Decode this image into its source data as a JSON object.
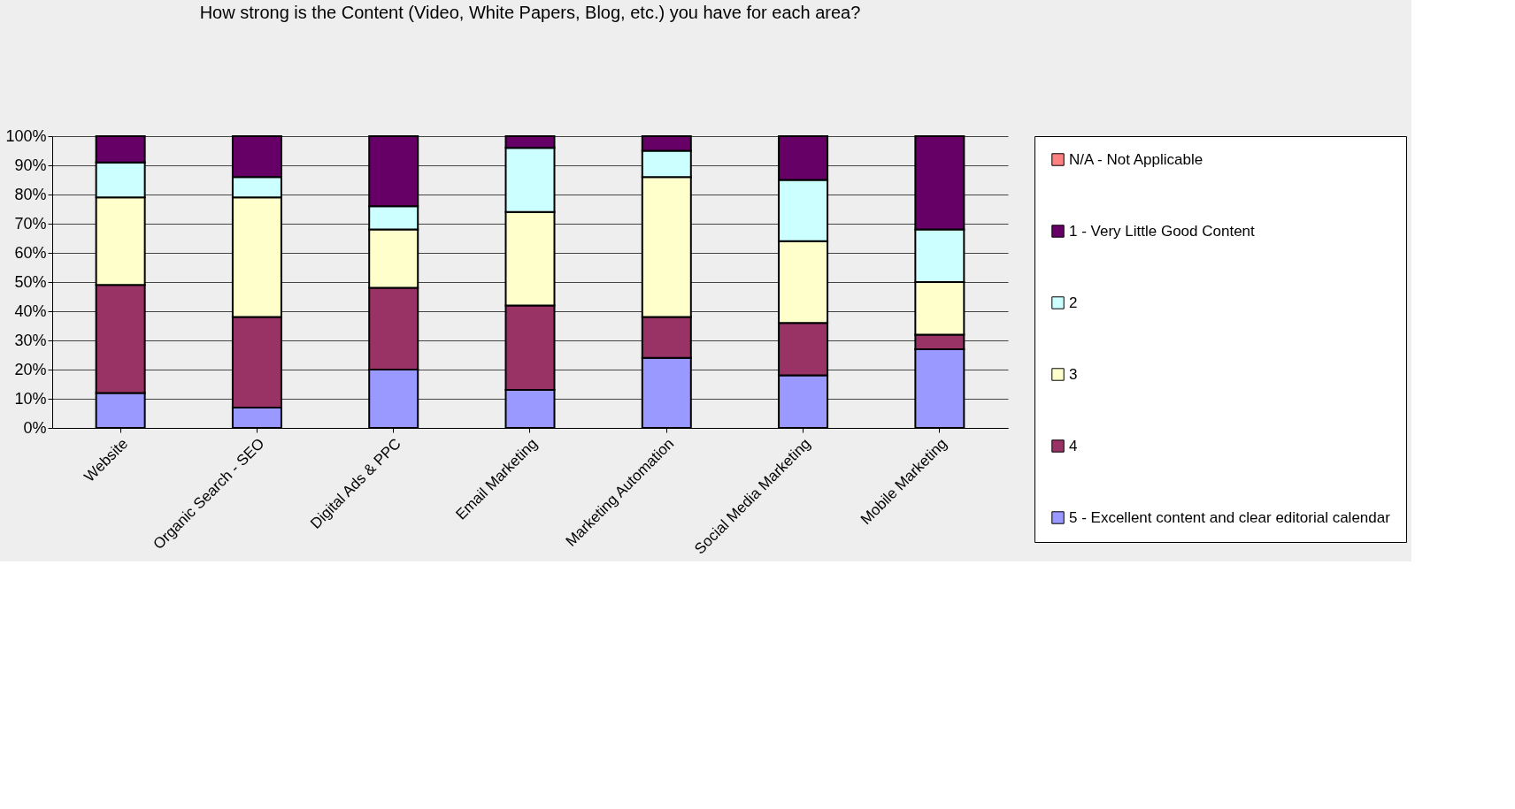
{
  "chart_data": {
    "type": "bar",
    "stacked": true,
    "title": "How strong is the Content (Video, White Papers, Blog, etc.) you have for each area?",
    "categories": [
      "Website",
      "Organic Search - SEO",
      "Digital Ads & PPC",
      "Email Marketing",
      "Marketing Automation",
      "Social Media Marketing",
      "Mobile Marketing"
    ],
    "series": [
      {
        "name": "5 - Excellent content and clear editorial calendar",
        "color": "#9999ff",
        "values": [
          12,
          7,
          20,
          13,
          24,
          18,
          27
        ]
      },
      {
        "name": "4",
        "color": "#993366",
        "values": [
          37,
          31,
          28,
          29,
          14,
          18,
          5
        ]
      },
      {
        "name": "3",
        "color": "#ffffcc",
        "values": [
          30,
          41,
          20,
          32,
          48,
          28,
          18
        ]
      },
      {
        "name": "2",
        "color": "#ccffff",
        "values": [
          12,
          7,
          8,
          22,
          9,
          21,
          18
        ]
      },
      {
        "name": "1 - Very Little Good Content",
        "color": "#660066",
        "values": [
          9,
          14,
          24,
          4,
          5,
          15,
          32
        ]
      },
      {
        "name": "N/A - Not Applicable",
        "color": "#ff8080",
        "values": [
          0,
          0,
          0,
          0,
          0,
          0,
          0
        ]
      }
    ],
    "ylim": [
      0,
      100
    ],
    "yticks": [
      {
        "value": 0,
        "label": "0%"
      },
      {
        "value": 10,
        "label": "10%"
      },
      {
        "value": 20,
        "label": "20%"
      },
      {
        "value": 30,
        "label": "30%"
      },
      {
        "value": 40,
        "label": "40%"
      },
      {
        "value": 50,
        "label": "50%"
      },
      {
        "value": 60,
        "label": "60%"
      },
      {
        "value": 70,
        "label": "70%"
      },
      {
        "value": 80,
        "label": "80%"
      },
      {
        "value": 90,
        "label": "90%"
      },
      {
        "value": 100,
        "label": "100%"
      }
    ],
    "grid": "y",
    "legend": "right"
  }
}
